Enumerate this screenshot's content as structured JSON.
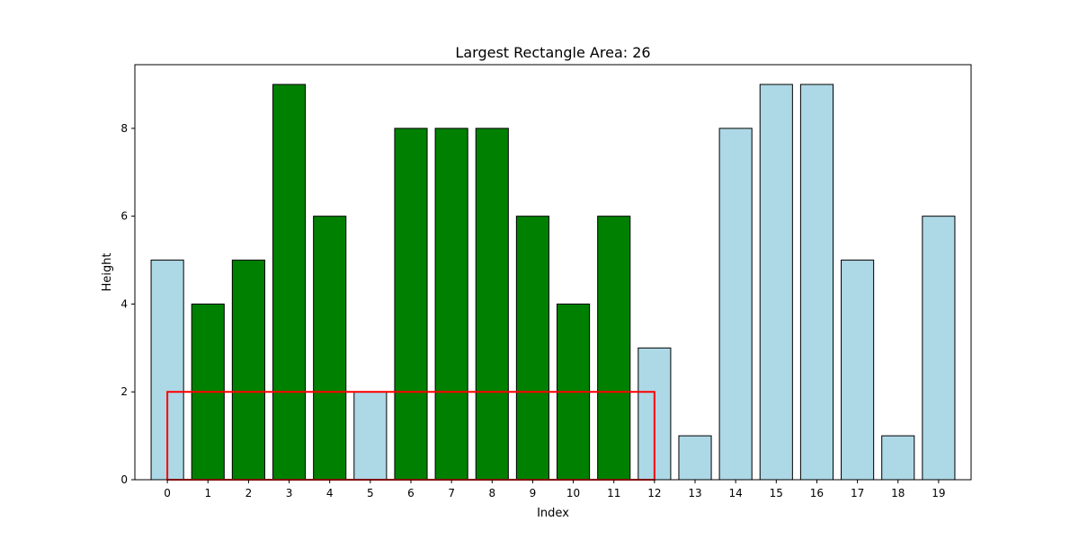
{
  "chart_data": {
    "type": "bar",
    "title": "Largest Rectangle Area: 26",
    "xlabel": "Index",
    "ylabel": "Height",
    "categories": [
      "0",
      "1",
      "2",
      "3",
      "4",
      "5",
      "6",
      "7",
      "8",
      "9",
      "10",
      "11",
      "12",
      "13",
      "14",
      "15",
      "16",
      "17",
      "18",
      "19"
    ],
    "values": [
      5,
      4,
      5,
      9,
      6,
      2,
      8,
      8,
      8,
      6,
      4,
      6,
      3,
      1,
      8,
      9,
      9,
      5,
      1,
      6
    ],
    "bar_colors": [
      "#add8e6",
      "#008000",
      "#008000",
      "#008000",
      "#008000",
      "#add8e6",
      "#008000",
      "#008000",
      "#008000",
      "#008000",
      "#008000",
      "#008000",
      "#add8e6",
      "#add8e6",
      "#add8e6",
      "#add8e6",
      "#add8e6",
      "#add8e6",
      "#add8e6",
      "#add8e6"
    ],
    "edge_color": "#000000",
    "ylim": [
      0,
      9.45
    ],
    "yticks": [
      0,
      2,
      4,
      6,
      8
    ],
    "grid": false,
    "highlight_rectangle": {
      "x_start": 0,
      "x_end": 12,
      "height": 2,
      "color": "#ff0000"
    }
  }
}
